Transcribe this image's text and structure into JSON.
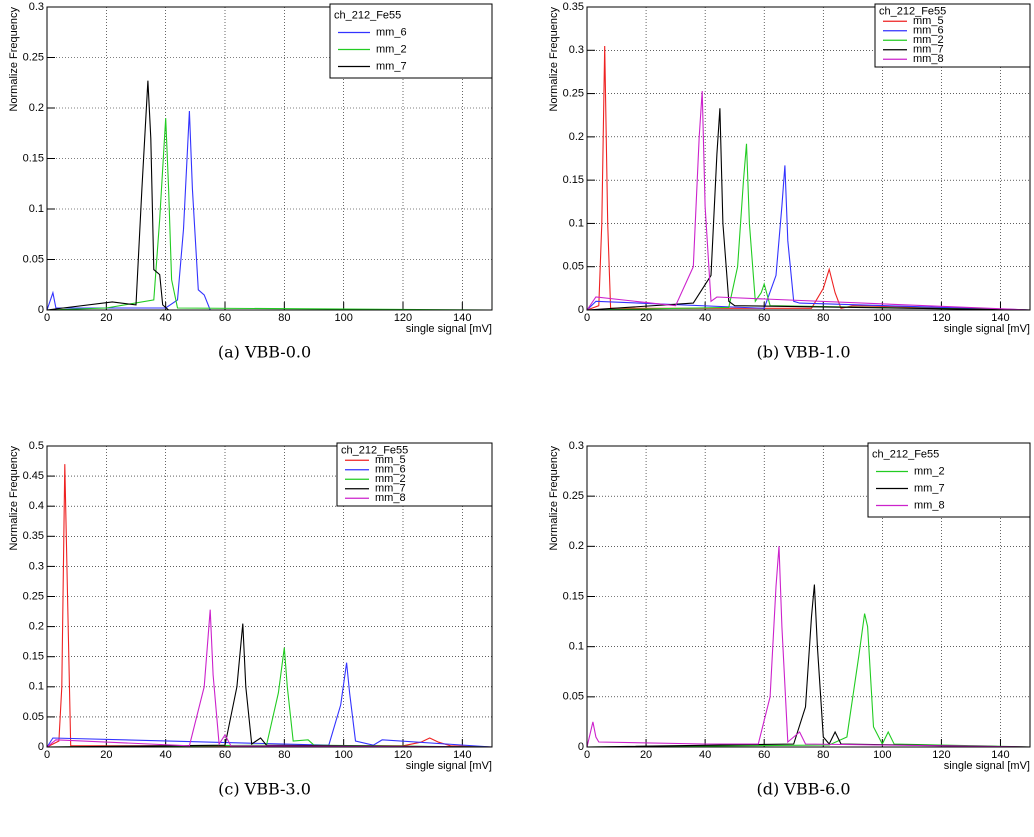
{
  "chart_data": [
    {
      "type": "line",
      "title": "ch_212_Fe55",
      "xlabel": "single signal [mV]",
      "ylabel": "Normalize Frequency",
      "caption": "(a) VBB-0.0",
      "xlim": [
        0,
        150
      ],
      "xticks": [
        0,
        20,
        40,
        60,
        80,
        100,
        120,
        140
      ],
      "ylim": [
        0,
        0.3
      ],
      "yticks": [
        0,
        0.05,
        0.1,
        0.15,
        0.2,
        0.25,
        0.3
      ],
      "grid": true,
      "legend": "upper right",
      "series": [
        {
          "name": "mm_6",
          "color": "#3333ff",
          "x": [
            0,
            2,
            3,
            40,
            44,
            46,
            48,
            49,
            51,
            53,
            55,
            150
          ],
          "values": [
            0,
            0.017,
            0.002,
            0.002,
            0.01,
            0.08,
            0.197,
            0.12,
            0.02,
            0.015,
            0,
            0
          ]
        },
        {
          "name": "mm_2",
          "color": "#22cc22",
          "x": [
            0,
            20,
            36,
            38,
            40,
            41,
            42,
            44,
            150
          ],
          "values": [
            0,
            0.002,
            0.01,
            0.09,
            0.19,
            0.12,
            0.03,
            0.002,
            0
          ]
        },
        {
          "name": "mm_7",
          "color": "#000000",
          "x": [
            0,
            22,
            30,
            32,
            34,
            35,
            36,
            38,
            39,
            41,
            150
          ],
          "values": [
            0,
            0.008,
            0.005,
            0.12,
            0.227,
            0.17,
            0.04,
            0.035,
            0.005,
            0,
            0
          ]
        }
      ]
    },
    {
      "type": "line",
      "title": "ch_212_Fe55",
      "xlabel": "single signal [mV]",
      "ylabel": "Normalize Frequency",
      "caption": "(b) VBB-1.0",
      "xlim": [
        0,
        150
      ],
      "xticks": [
        0,
        20,
        40,
        60,
        80,
        100,
        120,
        140
      ],
      "ylim": [
        0,
        0.35
      ],
      "yticks": [
        0,
        0.05,
        0.1,
        0.15,
        0.2,
        0.25,
        0.3,
        0.35
      ],
      "grid": true,
      "legend": "upper right",
      "series": [
        {
          "name": "mm_5",
          "color": "#ee2222",
          "x": [
            0,
            4,
            5,
            6,
            7,
            8,
            76,
            80,
            82,
            84,
            86,
            90,
            150
          ],
          "values": [
            0,
            0.005,
            0.1,
            0.305,
            0.1,
            0.002,
            0.002,
            0.025,
            0.047,
            0.02,
            0.002,
            0.005,
            0
          ]
        },
        {
          "name": "mm_6",
          "color": "#3333ff",
          "x": [
            0,
            3,
            60,
            64,
            66,
            67,
            68,
            70,
            72,
            150
          ],
          "values": [
            0,
            0.01,
            0.002,
            0.04,
            0.12,
            0.167,
            0.08,
            0.01,
            0.008,
            0
          ]
        },
        {
          "name": "mm_2",
          "color": "#22cc22",
          "x": [
            0,
            48,
            51,
            53,
            54,
            55,
            57,
            59,
            60,
            62,
            150
          ],
          "values": [
            0,
            0.003,
            0.05,
            0.15,
            0.192,
            0.1,
            0.01,
            0.02,
            0.03,
            0.005,
            0
          ]
        },
        {
          "name": "mm_7",
          "color": "#000000",
          "x": [
            0,
            36,
            42,
            44,
            45,
            46,
            48,
            50,
            150
          ],
          "values": [
            0,
            0.008,
            0.04,
            0.18,
            0.233,
            0.1,
            0.01,
            0.005,
            0
          ]
        },
        {
          "name": "mm_8",
          "color": "#cc22cc",
          "x": [
            0,
            3,
            30,
            36,
            38,
            39,
            40,
            42,
            44,
            150
          ],
          "values": [
            0,
            0.015,
            0.005,
            0.05,
            0.2,
            0.253,
            0.12,
            0.01,
            0.015,
            0
          ]
        }
      ]
    },
    {
      "type": "line",
      "title": "ch_212_Fe55",
      "xlabel": "single signal [mV]",
      "ylabel": "Normalize Frequency",
      "caption": "(c) VBB-3.0",
      "xlim": [
        0,
        150
      ],
      "xticks": [
        0,
        20,
        40,
        60,
        80,
        100,
        120,
        140
      ],
      "ylim": [
        0,
        0.5
      ],
      "yticks": [
        0,
        0.05,
        0.1,
        0.15,
        0.2,
        0.25,
        0.3,
        0.35,
        0.4,
        0.45,
        0.5
      ],
      "grid": true,
      "legend": "upper right",
      "series": [
        {
          "name": "mm_5",
          "color": "#ee2222",
          "x": [
            0,
            4,
            5,
            6,
            7,
            8,
            120,
            126,
            129,
            132,
            136,
            150
          ],
          "values": [
            0,
            0.01,
            0.1,
            0.47,
            0.23,
            0.002,
            0.002,
            0.008,
            0.015,
            0.008,
            0.002,
            0
          ]
        },
        {
          "name": "mm_6",
          "color": "#3333ff",
          "x": [
            0,
            2,
            95,
            99,
            101,
            102,
            104,
            110,
            113,
            150
          ],
          "values": [
            0,
            0.015,
            0.003,
            0.07,
            0.14,
            0.09,
            0.01,
            0.003,
            0.012,
            0
          ]
        },
        {
          "name": "mm_2",
          "color": "#22cc22",
          "x": [
            0,
            74,
            78,
            80,
            81,
            83,
            88,
            90,
            150
          ],
          "values": [
            0,
            0.003,
            0.09,
            0.165,
            0.1,
            0.01,
            0.012,
            0.003,
            0
          ]
        },
        {
          "name": "mm_7",
          "color": "#000000",
          "x": [
            0,
            60,
            64,
            66,
            67,
            69,
            72,
            74,
            150
          ],
          "values": [
            0,
            0.003,
            0.1,
            0.205,
            0.1,
            0.005,
            0.015,
            0.003,
            0
          ]
        },
        {
          "name": "mm_8",
          "color": "#cc22cc",
          "x": [
            0,
            3,
            48,
            53,
            55,
            56,
            58,
            60,
            62,
            150
          ],
          "values": [
            0,
            0.012,
            0.002,
            0.1,
            0.228,
            0.12,
            0.005,
            0.02,
            0.002,
            0
          ]
        }
      ]
    },
    {
      "type": "line",
      "title": "ch_212_Fe55",
      "xlabel": "single signal [mV]",
      "ylabel": "Normalize Frequency",
      "caption": "(d) VBB-6.0",
      "xlim": [
        0,
        150
      ],
      "xticks": [
        0,
        20,
        40,
        60,
        80,
        100,
        120,
        140
      ],
      "ylim": [
        0,
        0.3
      ],
      "yticks": [
        0,
        0.05,
        0.1,
        0.15,
        0.2,
        0.25,
        0.3
      ],
      "grid": true,
      "legend": "upper right",
      "series": [
        {
          "name": "mm_2",
          "color": "#22cc22",
          "x": [
            0,
            82,
            88,
            92,
            94,
            95,
            97,
            100,
            102,
            104,
            150
          ],
          "values": [
            0,
            0.002,
            0.01,
            0.09,
            0.133,
            0.12,
            0.02,
            0.003,
            0.015,
            0.003,
            0
          ]
        },
        {
          "name": "mm_7",
          "color": "#000000",
          "x": [
            0,
            70,
            74,
            76,
            77,
            78,
            80,
            82,
            84,
            86,
            150
          ],
          "values": [
            0,
            0.003,
            0.04,
            0.13,
            0.162,
            0.1,
            0.01,
            0.003,
            0.015,
            0.003,
            0
          ]
        },
        {
          "name": "mm_8",
          "color": "#cc22cc",
          "x": [
            0,
            2,
            3,
            4,
            40,
            58,
            62,
            64,
            65,
            66,
            68,
            70,
            72,
            74,
            150
          ],
          "values": [
            0,
            0.025,
            0.01,
            0.005,
            0.003,
            0.003,
            0.05,
            0.16,
            0.2,
            0.12,
            0.005,
            0.01,
            0.015,
            0.003,
            0
          ]
        }
      ]
    }
  ]
}
